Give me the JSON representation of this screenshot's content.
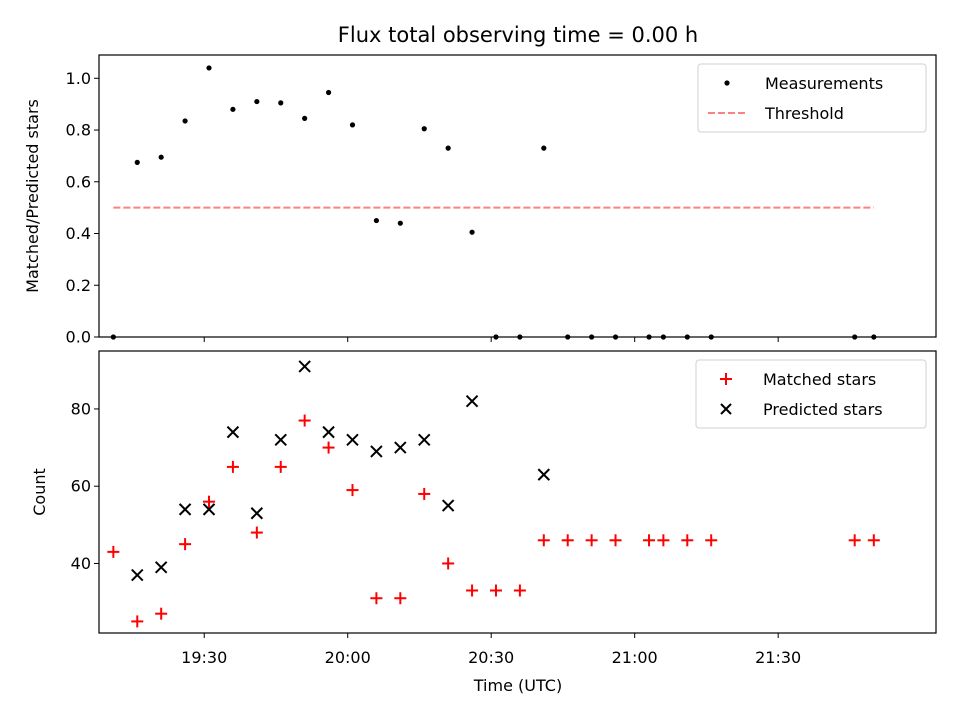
{
  "chart_data": [
    {
      "type": "scatter",
      "title": "Flux total observing time = 0.00 h",
      "ylabel": "Matched/Predicted stars",
      "xlabel": "",
      "ylim": [
        0,
        1.09
      ],
      "xlim": [
        "19:08",
        "22:03"
      ],
      "yticks": [
        0.0,
        0.2,
        0.4,
        0.6,
        0.8,
        1.0
      ],
      "ytick_labels": [
        "0.0",
        "0.2",
        "0.4",
        "0.6",
        "0.8",
        "1.0"
      ],
      "legend": {
        "position": "top-right",
        "entries": [
          "Measurements",
          "Threshold"
        ]
      },
      "grid": false,
      "series": [
        {
          "name": "Measurements",
          "marker": "dot",
          "color": "#000000",
          "x": [
            "19:11",
            "19:16",
            "19:21",
            "19:26",
            "19:31",
            "19:36",
            "19:41",
            "19:46",
            "19:51",
            "19:56",
            "20:01",
            "20:06",
            "20:11",
            "20:16",
            "20:21",
            "20:26",
            "20:31",
            "20:36",
            "20:41",
            "20:46",
            "20:51",
            "20:56",
            "21:03",
            "21:06",
            "21:11",
            "21:16",
            "21:46",
            "21:50"
          ],
          "y": [
            0.0,
            0.675,
            0.695,
            0.835,
            1.04,
            0.88,
            0.91,
            0.905,
            0.845,
            0.945,
            0.82,
            0.45,
            0.44,
            0.805,
            0.73,
            0.405,
            0.0,
            0.0,
            0.73,
            0.0,
            0.0,
            0.0,
            0.0,
            0.0,
            0.0,
            0.0,
            0.0,
            0.0
          ]
        },
        {
          "name": "Threshold",
          "style": "dashed",
          "color": "#ff8080",
          "x": [
            "19:11",
            "21:50"
          ],
          "y": [
            0.5,
            0.5
          ]
        }
      ]
    },
    {
      "type": "scatter",
      "title": "",
      "ylabel": "Count",
      "xlabel": "Time (UTC)",
      "ylim": [
        22,
        95
      ],
      "xlim": [
        "19:08",
        "22:03"
      ],
      "yticks": [
        40,
        60,
        80
      ],
      "ytick_labels": [
        "40",
        "60",
        "80"
      ],
      "xticks": [
        "19:30",
        "20:00",
        "20:30",
        "21:00",
        "21:30"
      ],
      "xtick_labels": [
        "19:30",
        "20:00",
        "20:30",
        "21:00",
        "21:30"
      ],
      "legend": {
        "position": "top-right",
        "entries": [
          "Matched stars",
          "Predicted stars"
        ]
      },
      "grid": false,
      "series": [
        {
          "name": "Matched stars",
          "marker": "plus",
          "color": "#ff0000",
          "x": [
            "19:11",
            "19:16",
            "19:21",
            "19:26",
            "19:31",
            "19:36",
            "19:41",
            "19:46",
            "19:51",
            "19:56",
            "20:01",
            "20:06",
            "20:11",
            "20:16",
            "20:21",
            "20:26",
            "20:31",
            "20:36",
            "20:41",
            "20:46",
            "20:51",
            "20:56",
            "21:03",
            "21:06",
            "21:11",
            "21:16",
            "21:46",
            "21:50"
          ],
          "y": [
            43,
            25,
            27,
            45,
            56,
            65,
            48,
            65,
            77,
            70,
            59,
            31,
            31,
            58,
            40,
            33,
            33,
            33,
            46,
            46,
            46,
            46,
            46,
            46,
            46,
            46,
            46,
            46
          ]
        },
        {
          "name": "Predicted stars",
          "marker": "x",
          "color": "#000000",
          "x": [
            "19:16",
            "19:21",
            "19:26",
            "19:31",
            "19:36",
            "19:41",
            "19:46",
            "19:51",
            "19:56",
            "20:01",
            "20:06",
            "20:11",
            "20:16",
            "20:21",
            "20:26",
            "20:41"
          ],
          "y": [
            37,
            39,
            54,
            54,
            74,
            53,
            72,
            91,
            74,
            72,
            69,
            70,
            72,
            55,
            82,
            63
          ]
        }
      ]
    }
  ]
}
